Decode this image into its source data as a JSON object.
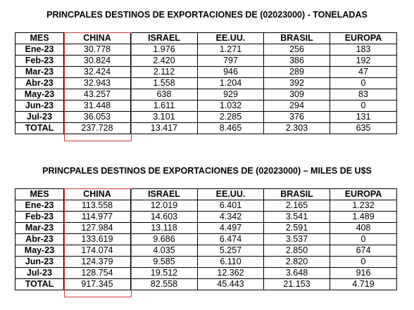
{
  "tables": [
    {
      "title": "PRINCPALES DESTINOS DE EXPORTACIONES DE (02023000) - TONELADAS",
      "headers": [
        "MES",
        "CHINA",
        "ISRAEL",
        "EE.UU.",
        "BRASIL",
        "EUROPA"
      ],
      "rows": [
        [
          "Ene-23",
          "30.778",
          "1.976",
          "1.271",
          "256",
          "183"
        ],
        [
          "Feb-23",
          "30.824",
          "2.420",
          "797",
          "386",
          "192"
        ],
        [
          "Mar-23",
          "32.424",
          "2.112",
          "946",
          "289",
          "47"
        ],
        [
          "Abr-23",
          "32.943",
          "1.558",
          "1.204",
          "392",
          "0"
        ],
        [
          "May-23",
          "43.257",
          "638",
          "929",
          "309",
          "83"
        ],
        [
          "Jun-23",
          "31.448",
          "1.611",
          "1.032",
          "294",
          "0"
        ],
        [
          "Jul-23",
          "36.053",
          "3.101",
          "2.285",
          "376",
          "131"
        ],
        [
          "TOTAL",
          "237.728",
          "13.417",
          "8.465",
          "2.303",
          "635"
        ]
      ]
    },
    {
      "title": "PRINCPALES DESTINOS DE EXPORTACIONES DE (02023000) – MILES DE U$S",
      "headers": [
        "MES",
        "CHINA",
        "ISRAEL",
        "EE.UU.",
        "BRASIL",
        "EUROPA"
      ],
      "rows": [
        [
          "Ene-23",
          "113.558",
          "12.019",
          "6.401",
          "2.165",
          "1.232"
        ],
        [
          "Feb-23",
          "114.977",
          "14.603",
          "4.342",
          "3.541",
          "1.489"
        ],
        [
          "Mar-23",
          "127.984",
          "13.118",
          "4.497",
          "2.591",
          "408"
        ],
        [
          "Abr-23",
          "133.619",
          "9.686",
          "6.474",
          "3.537",
          "0"
        ],
        [
          "May-23",
          "174.074",
          "4.035",
          "5.257",
          "2.850",
          "674"
        ],
        [
          "Jun-23",
          "124.379",
          "9.585",
          "6.110",
          "2.820",
          "0"
        ],
        [
          "Jul-23",
          "128.754",
          "19.512",
          "12.362",
          "3.648",
          "916"
        ],
        [
          "TOTAL",
          "917.345",
          "82.558",
          "45.443",
          "21.153",
          "4.719"
        ]
      ]
    }
  ],
  "colors": {
    "highlight_border": "#d43a3a",
    "text": "#000000",
    "background": "#ffffff"
  }
}
